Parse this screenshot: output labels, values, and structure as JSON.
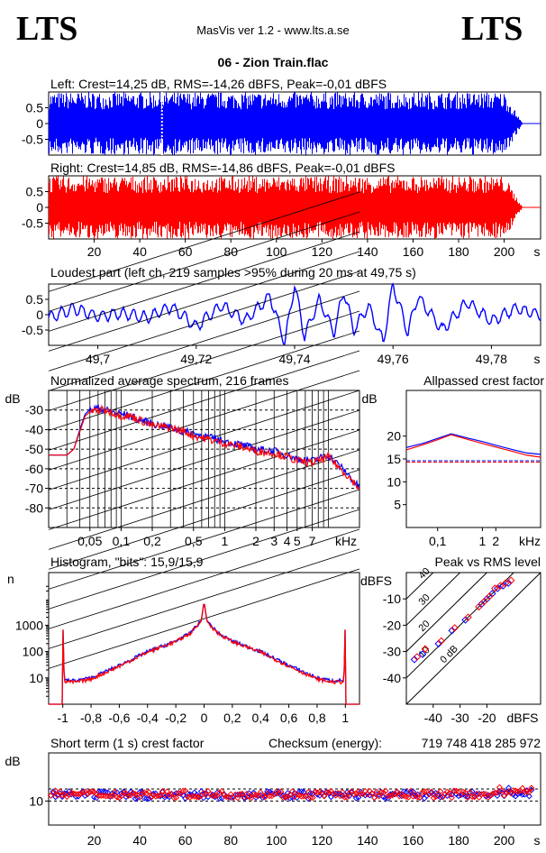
{
  "header": {
    "logo_left": "LTS",
    "logo_right": "LTS",
    "app_title": "MasVis ver 1.2 - www.lts.a.se",
    "track_title": "06 - Zion Train.flac"
  },
  "colors": {
    "left": "#0000ff",
    "right": "#ff0000",
    "grid": "#000000",
    "bg": "#ffffff"
  },
  "chart_data": [
    {
      "id": "waveform-left",
      "type": "area",
      "title": "Left: Crest=14,25 dB, RMS=-14,26 dBFS, Peak=-0,01 dBFS",
      "xlim": [
        0,
        216
      ],
      "ylim": [
        -1,
        1
      ],
      "y_ticks": [
        0.5,
        0,
        -0.5
      ],
      "y_tick_labels": [
        "0.5",
        "0",
        "-0.5"
      ],
      "marker_x": 49.75,
      "envelope": {
        "full_until": 200,
        "fade_end": 208
      },
      "series": [
        {
          "name": "Left",
          "color": "#0000ff"
        }
      ]
    },
    {
      "id": "waveform-right",
      "type": "area",
      "title": "Right: Crest=14,85 dB, RMS=-14,86 dBFS, Peak=-0,01 dBFS",
      "xlim": [
        0,
        216
      ],
      "ylim": [
        -1,
        1
      ],
      "y_ticks": [
        0.5,
        0,
        -0.5
      ],
      "y_tick_labels": [
        "0.5",
        "0",
        "-0.5"
      ],
      "x_ticks": [
        20,
        40,
        60,
        80,
        100,
        120,
        140,
        160,
        180,
        200
      ],
      "x_tick_labels": [
        "20",
        "40",
        "60",
        "80",
        "100",
        "120",
        "140",
        "160",
        "180",
        "200"
      ],
      "x_unit": "s",
      "envelope": {
        "full_until": 200,
        "fade_end": 208
      },
      "series": [
        {
          "name": "Right",
          "color": "#ff0000"
        }
      ]
    },
    {
      "id": "loudest-part",
      "type": "line",
      "title": "Loudest part (left  ch, 219 samples >95% during 20 ms at 49,75 s)",
      "xlim": [
        49.69,
        49.79
      ],
      "ylim": [
        -1,
        1
      ],
      "y_ticks": [
        0.5,
        0,
        -0.5
      ],
      "y_tick_labels": [
        "0.5",
        "0",
        "-0.5"
      ],
      "x_ticks": [
        49.7,
        49.72,
        49.74,
        49.76,
        49.78
      ],
      "x_tick_labels": [
        "49,7",
        "49,72",
        "49,74",
        "49,76",
        "49,78"
      ],
      "x_unit": "s",
      "series": [
        {
          "name": "Left",
          "color": "#0000ff",
          "x": [
            49.69,
            49.695,
            49.7,
            49.705,
            49.71,
            49.715,
            49.72,
            49.725,
            49.73,
            49.735,
            49.738,
            49.74,
            49.742,
            49.745,
            49.748,
            49.75,
            49.752,
            49.755,
            49.758,
            49.76,
            49.763,
            49.765,
            49.77,
            49.775,
            49.78,
            49.785,
            49.79
          ],
          "y": [
            -0.1,
            0.2,
            -0.05,
            0.05,
            -0.1,
            0.25,
            -0.4,
            0.3,
            -0.2,
            0.6,
            -0.9,
            1.0,
            -0.7,
            0.5,
            -0.6,
            0.8,
            -0.5,
            0.3,
            -0.9,
            1.0,
            -0.6,
            0.6,
            -0.5,
            0.4,
            -0.2,
            0.2,
            0.0
          ]
        }
      ]
    },
    {
      "id": "spectrum",
      "type": "line",
      "title": "Normalized average spectrum, 216 frames",
      "ylabel": "dB",
      "x_unit": "kHz",
      "x_scale": "log",
      "xlim": [
        0.02,
        20
      ],
      "ylim": [
        -90,
        -20
      ],
      "y_ticks": [
        -30,
        -40,
        -50,
        -60,
        -70,
        -80
      ],
      "y_tick_labels": [
        "-30",
        "-40",
        "-50",
        "-60",
        "-70",
        "-80"
      ],
      "x_ticks": [
        0.05,
        0.1,
        0.2,
        0.5,
        1,
        2,
        3,
        4,
        5,
        7
      ],
      "x_tick_labels": [
        "0,05",
        "0,1",
        "0,2",
        "0,5",
        "1",
        "2",
        "3",
        "4",
        "5",
        "7"
      ],
      "series": [
        {
          "name": "Left",
          "color": "#0000ff",
          "x": [
            0.02,
            0.03,
            0.035,
            0.04,
            0.045,
            0.05,
            0.06,
            0.07,
            0.08,
            0.1,
            0.12,
            0.15,
            0.2,
            0.3,
            0.4,
            0.5,
            0.7,
            1,
            1.5,
            2,
            3,
            4,
            5,
            7,
            10,
            15,
            20
          ],
          "y": [
            -53,
            -53,
            -50,
            -40,
            -32,
            -30,
            -29,
            -30,
            -31,
            -32,
            -33,
            -35,
            -37,
            -39,
            -41,
            -42,
            -44,
            -46,
            -48,
            -50,
            -51,
            -53,
            -55,
            -56,
            -53,
            -62,
            -70
          ]
        },
        {
          "name": "Right",
          "color": "#ff0000",
          "x": [
            0.02,
            0.03,
            0.035,
            0.04,
            0.045,
            0.05,
            0.06,
            0.07,
            0.08,
            0.1,
            0.12,
            0.15,
            0.2,
            0.3,
            0.4,
            0.5,
            0.7,
            1,
            1.5,
            2,
            3,
            4,
            5,
            7,
            10,
            15,
            20
          ],
          "y": [
            -53,
            -53,
            -50,
            -41,
            -33,
            -31,
            -30,
            -30,
            -31,
            -33,
            -33,
            -35,
            -38,
            -39,
            -41,
            -43,
            -45,
            -47,
            -49,
            -51,
            -52,
            -54,
            -56,
            -57,
            -54,
            -63,
            -70
          ]
        }
      ]
    },
    {
      "id": "allpassed-crest",
      "type": "line",
      "title": "Allpassed crest factor",
      "ylabel": "dB",
      "x_unit": "kHz",
      "x_scale": "log",
      "xlim": [
        0.02,
        20
      ],
      "ylim": [
        0,
        30
      ],
      "y_ticks": [
        20,
        15,
        10,
        5
      ],
      "y_tick_labels": [
        "20",
        "15",
        "10",
        "5"
      ],
      "x_ticks": [
        0.1,
        1,
        2
      ],
      "x_tick_labels": [
        "0,1",
        "1",
        "2"
      ],
      "series": [
        {
          "name": "Left",
          "color": "#0000ff",
          "x": [
            0.02,
            0.05,
            0.1,
            0.2,
            0.5,
            1,
            2,
            5,
            10,
            20
          ],
          "y": [
            17.5,
            18.5,
            19.5,
            20.5,
            19.5,
            18.8,
            18.0,
            17.0,
            16.3,
            16.0
          ]
        },
        {
          "name": "Right",
          "color": "#ff0000",
          "x": [
            0.02,
            0.05,
            0.1,
            0.2,
            0.5,
            1,
            2,
            5,
            10,
            20
          ],
          "y": [
            17.0,
            18.2,
            19.2,
            20.3,
            19.2,
            18.4,
            17.6,
            16.6,
            15.8,
            15.4
          ]
        }
      ],
      "reference_lines": [
        {
          "color": "#0000ff",
          "y": 14.6
        },
        {
          "color": "#ff0000",
          "y": 14.3
        }
      ]
    },
    {
      "id": "histogram",
      "type": "line",
      "title": "Histogram, \"bits\": 15,9/15,9",
      "ylabel": "n",
      "y_scale": "log",
      "xlim": [
        -1.1,
        1.1
      ],
      "ylim": [
        1,
        100000
      ],
      "y_ticks": [
        1000,
        100,
        10
      ],
      "y_tick_labels": [
        "1000",
        "100",
        "10"
      ],
      "x_ticks": [
        -1,
        -0.8,
        -0.6,
        -0.4,
        -0.2,
        0,
        0.2,
        0.4,
        0.6,
        0.8,
        1
      ],
      "x_tick_labels": [
        "-1",
        "-0,8",
        "-0,6",
        "-0,4",
        "-0,2",
        "0",
        "0,2",
        "0,4",
        "0,6",
        "0,8",
        "1"
      ],
      "series": [
        {
          "name": "Left",
          "color": "#0000ff",
          "x": [
            -1,
            -0.99,
            -0.9,
            -0.8,
            -0.6,
            -0.4,
            -0.2,
            -0.1,
            -0.02,
            0,
            0.02,
            0.1,
            0.2,
            0.4,
            0.6,
            0.8,
            0.9,
            0.99,
            1
          ],
          "y": [
            2000,
            8,
            8,
            10,
            30,
            100,
            250,
            500,
            1500,
            8000,
            1500,
            500,
            250,
            100,
            30,
            10,
            8,
            8,
            2000
          ]
        },
        {
          "name": "Right",
          "color": "#ff0000",
          "x": [
            -1,
            -0.99,
            -0.9,
            -0.8,
            -0.6,
            -0.4,
            -0.2,
            -0.1,
            -0.02,
            0,
            0.02,
            0.1,
            0.2,
            0.4,
            0.6,
            0.8,
            0.9,
            0.99,
            1
          ],
          "y": [
            2200,
            7,
            7,
            9,
            28,
            95,
            240,
            480,
            1400,
            8000,
            1400,
            480,
            240,
            95,
            28,
            9,
            7,
            7,
            2200
          ]
        }
      ]
    },
    {
      "id": "peak-vs-rms",
      "type": "scatter",
      "title": "Peak vs RMS level",
      "ylabel": "dBFS",
      "x_unit": "dBFS",
      "xlim": [
        -50,
        0
      ],
      "ylim": [
        -50,
        0
      ],
      "y_ticks": [
        -10,
        -20,
        -30,
        -40
      ],
      "y_tick_labels": [
        "-10",
        "-20",
        "-30",
        "-40"
      ],
      "x_ticks": [
        -40,
        -30,
        -20
      ],
      "x_tick_labels": [
        "-40",
        "-30",
        "-20"
      ],
      "diagonal_labels": [
        "40",
        "30",
        "20",
        "10",
        "0 dB"
      ],
      "series": [
        {
          "name": "Left",
          "color": "#0000ff",
          "x": [
            -47,
            -44,
            -38,
            -33,
            -28,
            -22,
            -20,
            -18,
            -16,
            -14,
            -12
          ],
          "y": [
            -33,
            -31,
            -27,
            -22,
            -18,
            -12,
            -10,
            -8,
            -6,
            -5,
            -4
          ]
        },
        {
          "name": "Right",
          "color": "#ff0000",
          "x": [
            -46,
            -43,
            -37,
            -32,
            -27,
            -23,
            -21,
            -19,
            -17,
            -15,
            -13,
            -11
          ],
          "y": [
            -32,
            -29,
            -26,
            -21,
            -17,
            -13,
            -11,
            -9,
            -6,
            -5,
            -4,
            -3
          ]
        }
      ]
    },
    {
      "id": "short-term-crest",
      "type": "scatter",
      "title": "Short term (1 s) crest factor",
      "checksum_label": "Checksum (energy):",
      "checksum_value": "719 748 418 285 972",
      "ylabel": "dB",
      "x_unit": "s",
      "xlim": [
        0,
        216
      ],
      "ylim": [
        0,
        30
      ],
      "y_ticks": [
        10
      ],
      "y_tick_labels": [
        "10"
      ],
      "ref_lines": [
        10,
        15
      ],
      "x_ticks": [
        20,
        40,
        60,
        80,
        100,
        120,
        140,
        160,
        180,
        200
      ],
      "x_tick_labels": [
        "20",
        "40",
        "60",
        "80",
        "100",
        "120",
        "140",
        "160",
        "180",
        "200"
      ],
      "series": [
        {
          "name": "Left",
          "color": "#0000ff",
          "x": [],
          "y": []
        },
        {
          "name": "Right",
          "color": "#ff0000",
          "x": [],
          "y": []
        }
      ]
    }
  ]
}
